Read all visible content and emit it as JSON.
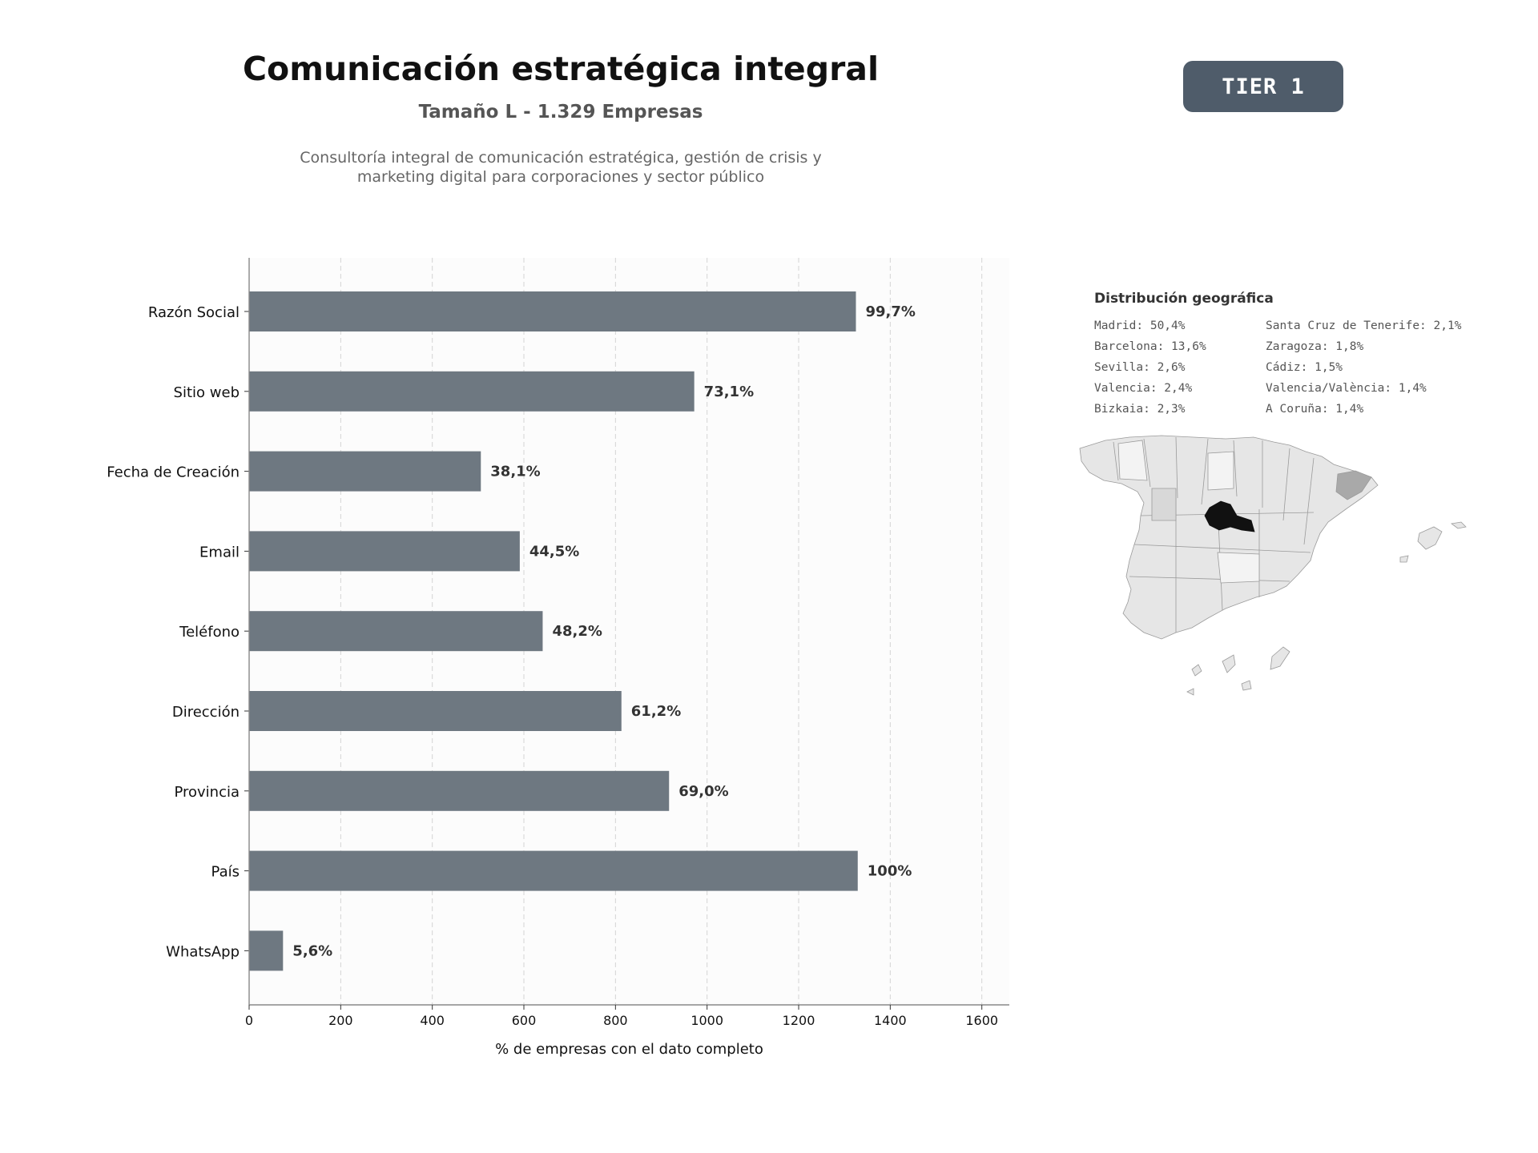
{
  "header": {
    "title": "Comunicación estratégica integral",
    "subtitle": "Tamaño L - 1.329 Empresas",
    "description_line1": "Consultoría integral de comunicación estratégica, gestión de crisis y",
    "description_line2": "marketing digital para corporaciones y sector público",
    "tier_label": "TIER 1"
  },
  "colors": {
    "bar": "#6e7881",
    "badge": "#4f5c6a",
    "map_highlight_madrid": "#111111",
    "map_highlight_barcelona": "#a9a9a9",
    "map_fill": "#e6e6e6"
  },
  "chart_data": {
    "type": "bar",
    "orientation": "horizontal",
    "categories": [
      "Razón Social",
      "Sitio web",
      "Fecha de Creación",
      "Email",
      "Teléfono",
      "Dirección",
      "Provincia",
      "País",
      "WhatsApp"
    ],
    "values": [
      1325,
      972,
      506,
      591,
      641,
      813,
      917,
      1329,
      74
    ],
    "data_labels": [
      "99,7%",
      "73,1%",
      "38,1%",
      "44,5%",
      "48,2%",
      "61,2%",
      "69,0%",
      "100%",
      "5,6%"
    ],
    "xlabel": "% de empresas con el dato completo",
    "ylabel": "",
    "xlim": [
      0,
      1660
    ],
    "xticks": [
      0,
      200,
      400,
      600,
      800,
      1000,
      1200,
      1400,
      1600
    ],
    "grid": "vertical dashed"
  },
  "geo": {
    "title": "Distribución geográfica",
    "items": [
      {
        "label": "Madrid: 50,4%"
      },
      {
        "label": "Barcelona: 13,6%"
      },
      {
        "label": "Sevilla: 2,6%"
      },
      {
        "label": "Valencia: 2,4%"
      },
      {
        "label": "Bizkaia: 2,3%"
      },
      {
        "label": "Santa Cruz de Tenerife: 2,1%"
      },
      {
        "label": "Zaragoza: 1,8%"
      },
      {
        "label": "Cádiz: 1,5%"
      },
      {
        "label": "Valencia/València: 1,4%"
      },
      {
        "label": "A Coruña: 1,4%"
      }
    ]
  }
}
